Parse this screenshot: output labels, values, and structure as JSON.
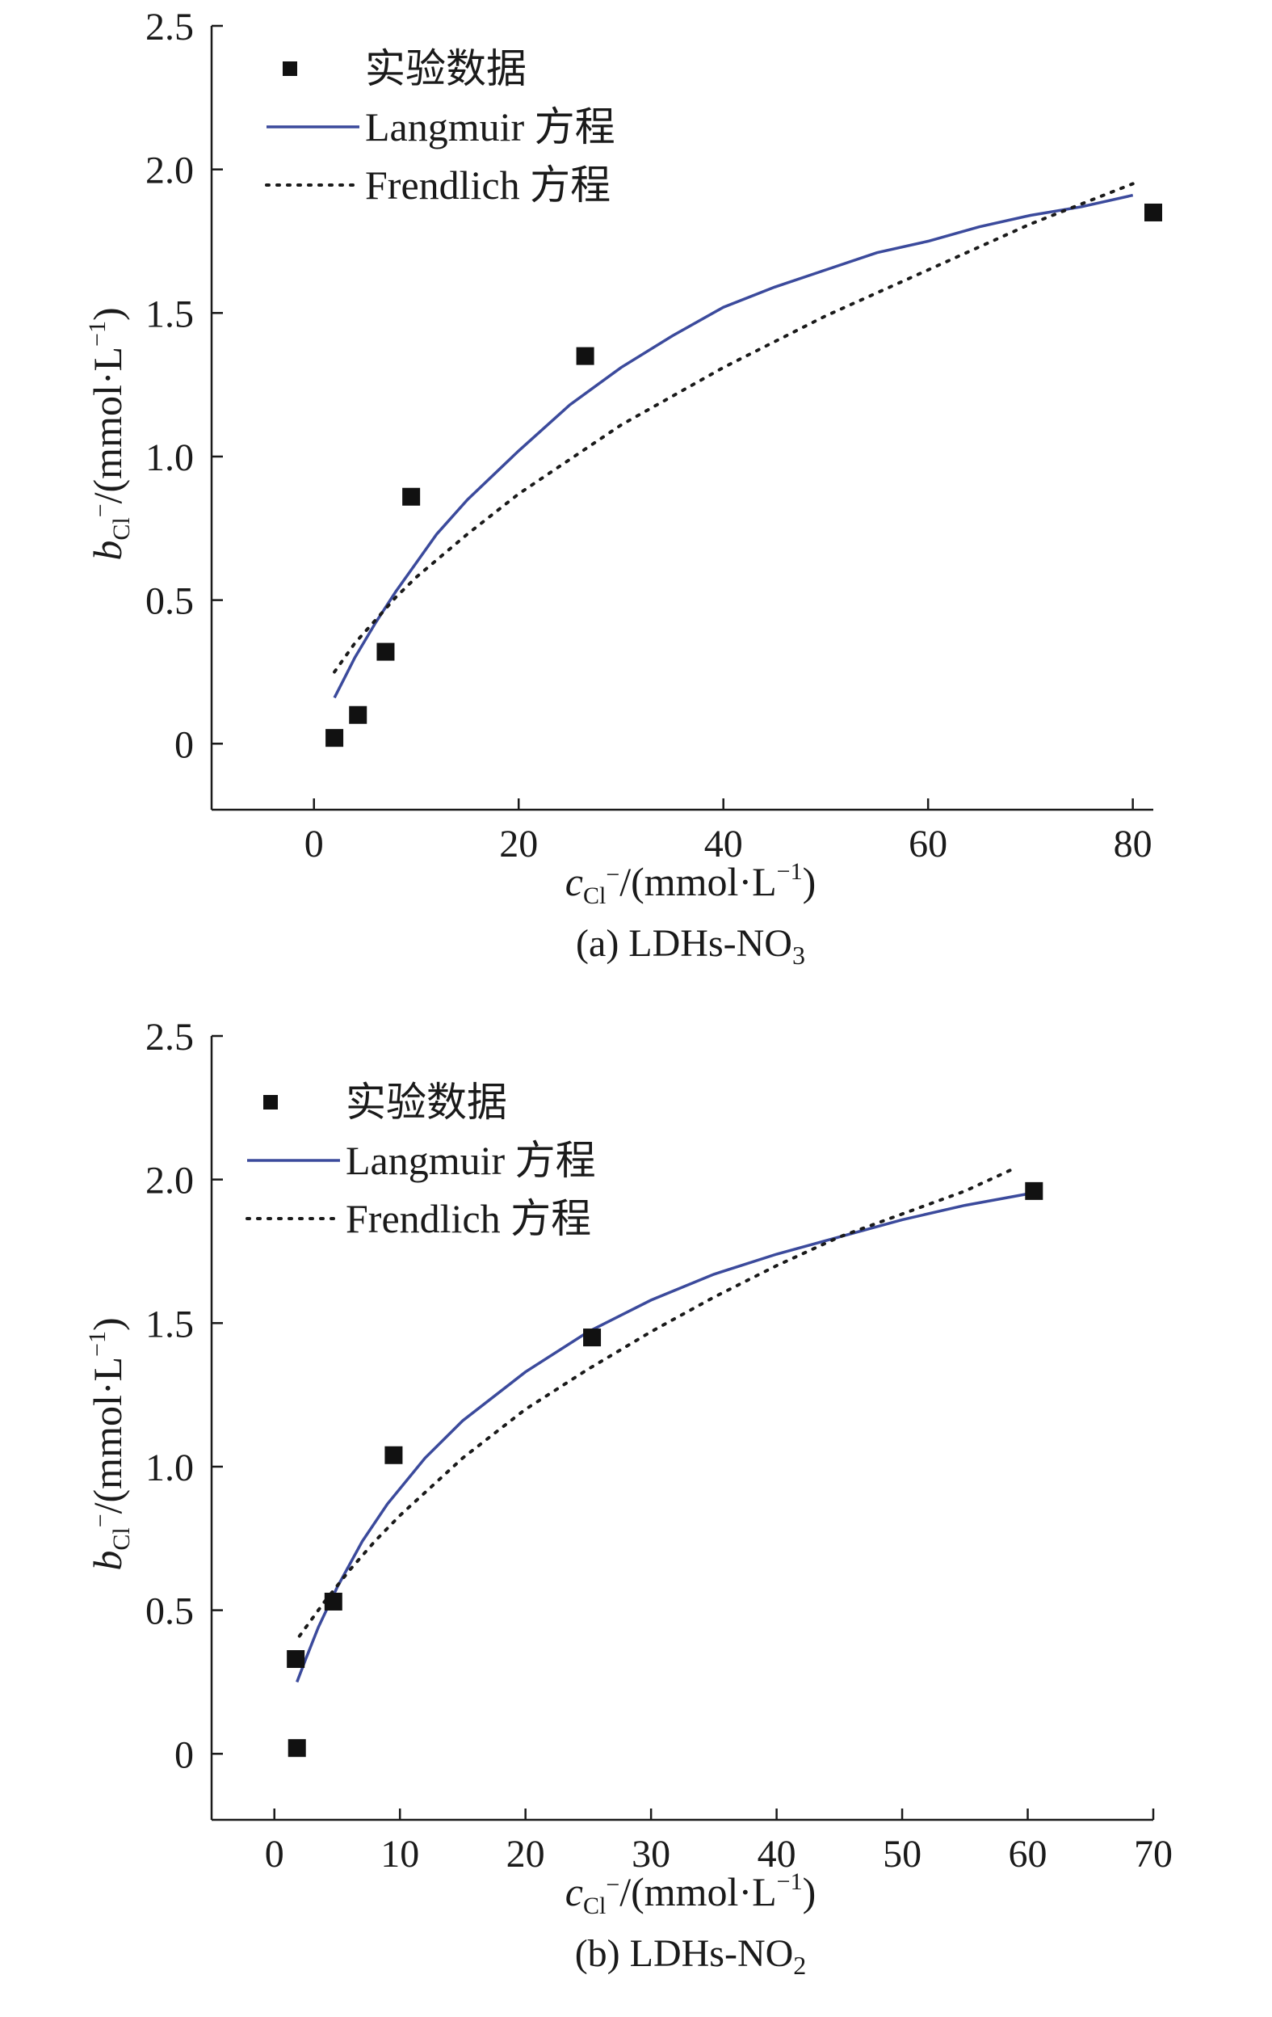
{
  "colors": {
    "axis": "#1a1a1a",
    "langmuir": "#3b4a9c",
    "frendlich": "#1a1a1a",
    "marker": "#111111"
  },
  "chart_data": [
    {
      "panel": "a",
      "type": "scatter",
      "caption": {
        "prefix": "(a) LDHs-NO",
        "sub": "3"
      },
      "xlabel": {
        "var": "c",
        "sub": "Cl",
        "sup": "−",
        "unit": "/(mmol·L",
        "unit_sup": "−1",
        "close": ")"
      },
      "ylabel": {
        "var": "b",
        "sub": "Cl",
        "sup": "−",
        "unit": "/(mmol·L",
        "unit_sup": "−1",
        "close": ")"
      },
      "xlim": [
        -10,
        82
      ],
      "ylim": [
        -0.23,
        2.5
      ],
      "xticks": [
        0,
        20,
        40,
        60,
        80
      ],
      "xtick_labels": [
        "0",
        "20",
        "40",
        "60",
        "80"
      ],
      "yticks": [
        0,
        0.5,
        1.0,
        1.5,
        2.0,
        2.5
      ],
      "ytick_labels": [
        "0",
        "0.5",
        "1.0",
        "1.5",
        "2.0",
        "2.5"
      ],
      "legend": [
        "实验数据",
        "Langmuir 方程",
        "Frendlich 方程"
      ],
      "legend_position": "top-left",
      "series": [
        {
          "name": "实验数据",
          "kind": "points",
          "points": [
            [
              2.0,
              0.02
            ],
            [
              4.3,
              0.1
            ],
            [
              7.0,
              0.32
            ],
            [
              9.5,
              0.86
            ],
            [
              26.5,
              1.35
            ],
            [
              82.0,
              1.85
            ]
          ]
        },
        {
          "name": "Langmuir 方程",
          "kind": "line",
          "points": [
            [
              2,
              0.16
            ],
            [
              3,
              0.23
            ],
            [
              4,
              0.3
            ],
            [
              5,
              0.36
            ],
            [
              6,
              0.42
            ],
            [
              8,
              0.53
            ],
            [
              10,
              0.63
            ],
            [
              12,
              0.73
            ],
            [
              15,
              0.85
            ],
            [
              20,
              1.02
            ],
            [
              25,
              1.18
            ],
            [
              30,
              1.31
            ],
            [
              35,
              1.42
            ],
            [
              40,
              1.52
            ],
            [
              45,
              1.59
            ],
            [
              50,
              1.65
            ],
            [
              55,
              1.71
            ],
            [
              60,
              1.75
            ],
            [
              65,
              1.8
            ],
            [
              70,
              1.84
            ],
            [
              75,
              1.87
            ],
            [
              80,
              1.91
            ]
          ]
        },
        {
          "name": "Frendlich 方程",
          "kind": "dotted",
          "points": [
            [
              2,
              0.25
            ],
            [
              4,
              0.35
            ],
            [
              6,
              0.43
            ],
            [
              8,
              0.51
            ],
            [
              10,
              0.58
            ],
            [
              15,
              0.73
            ],
            [
              20,
              0.87
            ],
            [
              25,
              0.99
            ],
            [
              30,
              1.11
            ],
            [
              35,
              1.21
            ],
            [
              40,
              1.31
            ],
            [
              45,
              1.4
            ],
            [
              50,
              1.49
            ],
            [
              55,
              1.57
            ],
            [
              60,
              1.65
            ],
            [
              65,
              1.73
            ],
            [
              70,
              1.81
            ],
            [
              75,
              1.88
            ],
            [
              80,
              1.95
            ]
          ]
        }
      ]
    },
    {
      "panel": "b",
      "type": "scatter",
      "caption": {
        "prefix": "(b) LDHs-NO",
        "sub": "2"
      },
      "xlabel": {
        "var": "c",
        "sub": "Cl",
        "sup": "−",
        "unit": "/(mmol·L",
        "unit_sup": "−1",
        "close": ")"
      },
      "ylabel": {
        "var": "b",
        "sub": "Cl",
        "sup": "−",
        "unit": "/(mmol·L",
        "unit_sup": "−1",
        "close": ")"
      },
      "xlim": [
        -5,
        70
      ],
      "ylim": [
        -0.23,
        2.5
      ],
      "xticks": [
        0,
        10,
        20,
        30,
        40,
        50,
        60,
        70
      ],
      "xtick_labels": [
        "0",
        "10",
        "20",
        "30",
        "40",
        "50",
        "60",
        "70"
      ],
      "yticks": [
        0,
        0.5,
        1.0,
        1.5,
        2.0,
        2.5
      ],
      "ytick_labels": [
        "0",
        "0.5",
        "1.0",
        "1.5",
        "2.0",
        "2.5"
      ],
      "legend": [
        "实验数据",
        "Langmuir 方程",
        "Frendlich 方程"
      ],
      "legend_position": "top-left",
      "series": [
        {
          "name": "实验数据",
          "kind": "points",
          "points": [
            [
              1.7,
              0.33
            ],
            [
              1.8,
              0.02
            ],
            [
              4.7,
              0.53
            ],
            [
              9.5,
              1.04
            ],
            [
              25.3,
              1.45
            ],
            [
              60.5,
              1.96
            ]
          ]
        },
        {
          "name": "Langmuir 方程",
          "kind": "line",
          "points": [
            [
              1.8,
              0.25
            ],
            [
              2.5,
              0.33
            ],
            [
              3.5,
              0.44
            ],
            [
              5,
              0.58
            ],
            [
              7,
              0.74
            ],
            [
              9,
              0.87
            ],
            [
              12,
              1.03
            ],
            [
              15,
              1.16
            ],
            [
              20,
              1.33
            ],
            [
              25,
              1.47
            ],
            [
              30,
              1.58
            ],
            [
              35,
              1.67
            ],
            [
              40,
              1.74
            ],
            [
              45,
              1.8
            ],
            [
              50,
              1.86
            ],
            [
              55,
              1.91
            ],
            [
              60,
              1.95
            ]
          ]
        },
        {
          "name": "Frendlich 方程",
          "kind": "dotted",
          "points": [
            [
              2,
              0.41
            ],
            [
              4,
              0.53
            ],
            [
              6,
              0.64
            ],
            [
              8,
              0.74
            ],
            [
              10,
              0.83
            ],
            [
              15,
              1.03
            ],
            [
              20,
              1.2
            ],
            [
              25,
              1.34
            ],
            [
              30,
              1.47
            ],
            [
              35,
              1.59
            ],
            [
              40,
              1.7
            ],
            [
              45,
              1.8
            ],
            [
              50,
              1.88
            ],
            [
              55,
              1.96
            ],
            [
              59,
              2.04
            ]
          ]
        }
      ]
    }
  ]
}
